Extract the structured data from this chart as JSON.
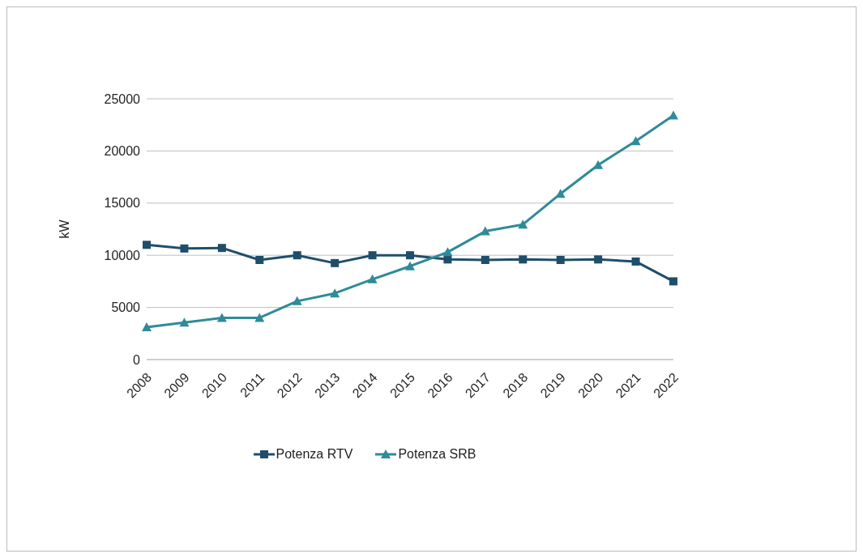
{
  "chart_data": {
    "type": "line",
    "ylabel": "kW",
    "categories": [
      "2008",
      "2009",
      "2010",
      "2011",
      "2012",
      "2013",
      "2014",
      "2015",
      "2016",
      "2017",
      "2018",
      "2019",
      "2020",
      "2021",
      "2022"
    ],
    "series": [
      {
        "name": "Potenza RTV",
        "color": "#1f4e6b",
        "marker": "square",
        "values": [
          11000,
          10650,
          10700,
          9550,
          10000,
          9250,
          10000,
          10000,
          9600,
          9550,
          9600,
          9550,
          9600,
          9400,
          7500
        ]
      },
      {
        "name": "Potenza SRB",
        "color": "#2e8b9a",
        "marker": "triangle",
        "values": [
          3100,
          3550,
          4000,
          4000,
          5600,
          6350,
          7700,
          8950,
          10300,
          12300,
          12950,
          15900,
          18650,
          20950,
          23400
        ]
      }
    ],
    "ylim": [
      0,
      25000
    ],
    "yticks": [
      0,
      5000,
      10000,
      15000,
      20000,
      25000
    ],
    "grid": "y",
    "legend": "bottom",
    "line_style": "solid"
  }
}
